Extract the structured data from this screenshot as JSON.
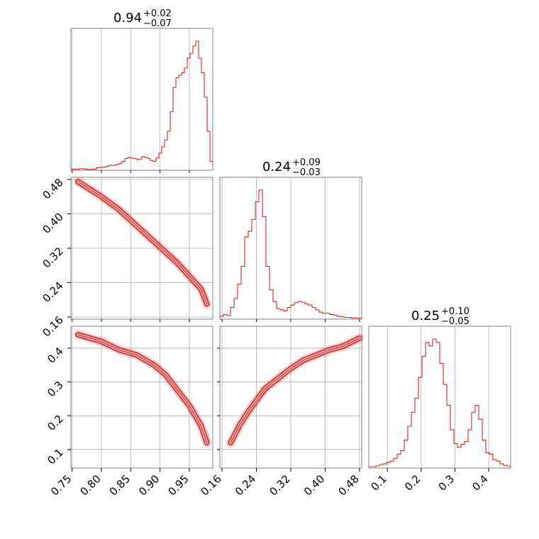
{
  "chart_data": {
    "type": "corner",
    "color": "#d62728",
    "grid": true,
    "parameters": [
      {
        "id": "p1",
        "title": {
          "median": "0.94",
          "plus": "+0.02",
          "minus": "−0.07"
        },
        "range": [
          0.748,
          0.99
        ],
        "ticks": [
          0.75,
          0.8,
          0.85,
          0.9,
          0.95
        ],
        "tick_labels": [
          "0.75",
          "0.80",
          "0.85",
          "0.90",
          "0.95"
        ],
        "histogram": {
          "bin_start": 0.748,
          "bin_end": 0.99,
          "counts": [
            2,
            2,
            2,
            3,
            3,
            2,
            1,
            2,
            2,
            5,
            6,
            6,
            7,
            9,
            10,
            10,
            12,
            14,
            18,
            24,
            26,
            25,
            24,
            22,
            23,
            28,
            26,
            24,
            20,
            18,
            25,
            35,
            48,
            62,
            80,
            120,
            170,
            190,
            195,
            200,
            210,
            230,
            240,
            255,
            265,
            230,
            200,
            150,
            80,
            18
          ]
        }
      },
      {
        "id": "p2",
        "title": {
          "median": "0.24",
          "plus": "+0.09",
          "minus": "−0.03"
        },
        "range": [
          0.155,
          0.485
        ],
        "ticks": [
          0.16,
          0.24,
          0.32,
          0.4,
          0.48
        ],
        "tick_labels": [
          "0.16",
          "0.24",
          "0.32",
          "0.40",
          "0.48"
        ],
        "histogram": {
          "bin_start": 0.155,
          "bin_end": 0.485,
          "counts": [
            5,
            8,
            6,
            20,
            35,
            60,
            90,
            140,
            150,
            170,
            200,
            220,
            175,
            90,
            50,
            30,
            18,
            16,
            14,
            20,
            24,
            28,
            30,
            29,
            26,
            24,
            20,
            16,
            12,
            10,
            10,
            8,
            7,
            5,
            4,
            3,
            3,
            2,
            2,
            2
          ]
        }
      },
      {
        "id": "p3",
        "title": {
          "median": "0.25",
          "plus": "+0.10",
          "minus": "−0.05"
        },
        "range": [
          0.045,
          0.465
        ],
        "ticks": [
          0.1,
          0.2,
          0.3,
          0.4
        ],
        "tick_labels": [
          "0.1",
          "0.2",
          "0.3",
          "0.4"
        ],
        "histogram": {
          "bin_start": 0.045,
          "bin_end": 0.465,
          "counts": [
            2,
            2,
            3,
            5,
            6,
            8,
            10,
            14,
            20,
            25,
            40,
            60,
            80,
            100,
            130,
            160,
            180,
            175,
            185,
            180,
            150,
            120,
            90,
            55,
            35,
            30,
            34,
            38,
            55,
            80,
            90,
            70,
            40,
            22,
            20,
            12,
            10,
            6,
            4,
            3
          ]
        }
      }
    ],
    "pair_tracks": {
      "p2_vs_p1": {
        "x": [
          0.76,
          0.8,
          0.83,
          0.85,
          0.87,
          0.89,
          0.91,
          0.93,
          0.95,
          0.97,
          0.98
        ],
        "y": [
          0.475,
          0.44,
          0.41,
          0.385,
          0.36,
          0.335,
          0.31,
          0.285,
          0.255,
          0.225,
          0.19
        ]
      },
      "p3_vs_p1": {
        "x": [
          0.76,
          0.8,
          0.83,
          0.86,
          0.89,
          0.91,
          0.93,
          0.95,
          0.97,
          0.98
        ],
        "y": [
          0.44,
          0.42,
          0.395,
          0.38,
          0.35,
          0.32,
          0.275,
          0.23,
          0.17,
          0.12
        ]
      },
      "p3_vs_p2": {
        "x": [
          0.18,
          0.2,
          0.22,
          0.24,
          0.26,
          0.29,
          0.32,
          0.35,
          0.38,
          0.41,
          0.44,
          0.48
        ],
        "y": [
          0.12,
          0.17,
          0.21,
          0.245,
          0.28,
          0.31,
          0.34,
          0.365,
          0.38,
          0.395,
          0.405,
          0.43
        ]
      }
    }
  }
}
